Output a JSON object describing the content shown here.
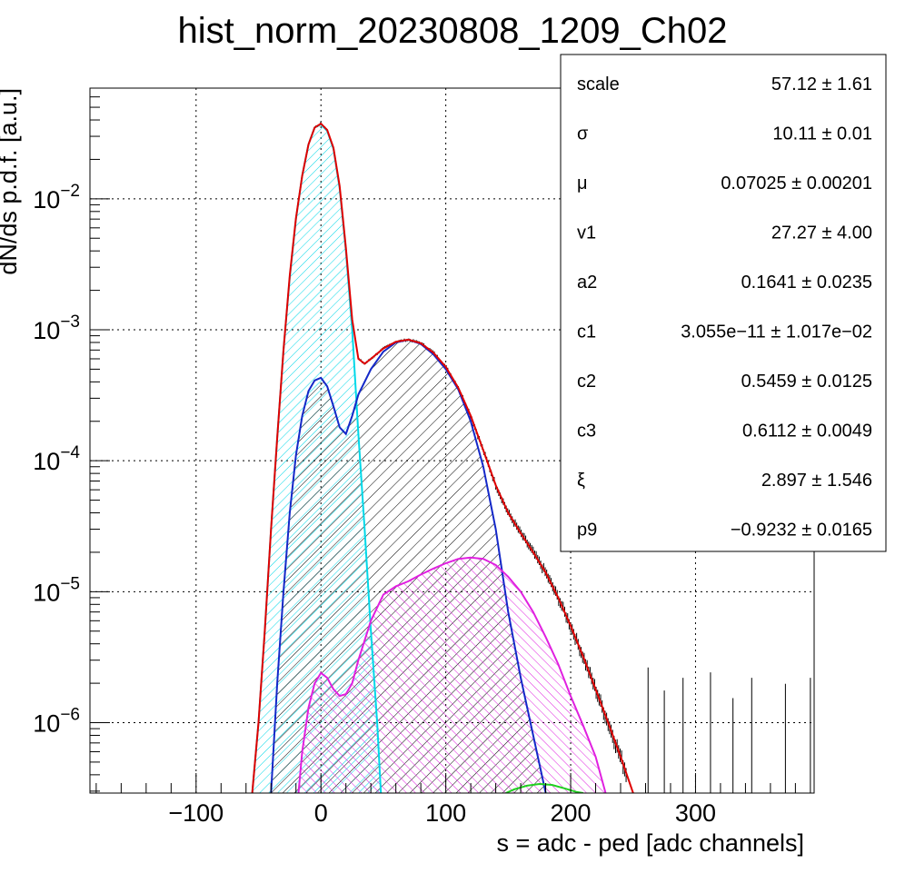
{
  "chart_data": {
    "type": "line",
    "title": "hist_norm_20230808_1209_Ch02",
    "xlabel": "s = adc - ped [adc channels]",
    "ylabel": "dN/ds p.d.f. [a.u.]",
    "x_range": [
      -185,
      395
    ],
    "y_range": [
      2.9e-07,
      0.07
    ],
    "y_scale": "log",
    "grid": true,
    "x_ticks": [
      {
        "value": -100,
        "label": "−100"
      },
      {
        "value": 0,
        "label": "0"
      },
      {
        "value": 100,
        "label": "100"
      },
      {
        "value": 200,
        "label": "200"
      },
      {
        "value": 300,
        "label": "300"
      }
    ],
    "y_ticks": [
      {
        "value": 0.01,
        "base": "10",
        "exp": "−2"
      },
      {
        "value": 0.001,
        "base": "10",
        "exp": "−3"
      },
      {
        "value": 0.0001,
        "base": "10",
        "exp": "−4"
      },
      {
        "value": 1e-05,
        "base": "10",
        "exp": "−5"
      },
      {
        "value": 1e-06,
        "base": "10",
        "exp": "−6"
      }
    ],
    "stats_box": {
      "placement": "top-right",
      "rows": [
        {
          "name": "scale",
          "value": "57.12 ± 1.61"
        },
        {
          "name": "σ",
          "value": "10.11 ± 0.01"
        },
        {
          "name": "μ",
          "value": "0.07025 ± 0.00201"
        },
        {
          "name": "v1",
          "value": "27.27 ± 4.00"
        },
        {
          "name": "a2",
          "value": "0.1641 ± 0.0235"
        },
        {
          "name": "c1",
          "value": "3.055e−11 ± 1.017e−02"
        },
        {
          "name": "c2",
          "value": "0.5459 ± 0.0125"
        },
        {
          "name": "c3",
          "value": "0.6112 ± 0.0049"
        },
        {
          "name": "ξ",
          "value": "2.897 ± 1.546"
        },
        {
          "name": "p9",
          "value": "−0.9232 ± 0.0165"
        }
      ]
    },
    "series": [
      {
        "color": "#00d8e8",
        "hatch": "cyan",
        "points": [
          [
            -55,
            2.9e-07
          ],
          [
            -50,
            1e-06
          ],
          [
            -45,
            5e-06
          ],
          [
            -40,
            3e-05
          ],
          [
            -35,
            0.00015
          ],
          [
            -30,
            0.0007
          ],
          [
            -25,
            0.0025
          ],
          [
            -20,
            0.007
          ],
          [
            -15,
            0.015
          ],
          [
            -10,
            0.026
          ],
          [
            -5,
            0.035
          ],
          [
            0,
            0.037
          ],
          [
            5,
            0.033
          ],
          [
            10,
            0.024
          ],
          [
            15,
            0.012
          ],
          [
            20,
            0.004
          ],
          [
            25,
            0.001
          ],
          [
            30,
            0.00016
          ],
          [
            35,
            3e-05
          ],
          [
            40,
            5e-06
          ],
          [
            45,
            1e-06
          ],
          [
            48,
            2.9e-07
          ]
        ]
      },
      {
        "color": "#1428c8",
        "hatch": "black",
        "points": [
          [
            -40,
            2.9e-07
          ],
          [
            -35,
            2e-06
          ],
          [
            -30,
            1e-05
          ],
          [
            -25,
            4e-05
          ],
          [
            -20,
            0.00011
          ],
          [
            -15,
            0.00022
          ],
          [
            -10,
            0.00034
          ],
          [
            -5,
            0.00041
          ],
          [
            0,
            0.00043
          ],
          [
            5,
            0.00037
          ],
          [
            10,
            0.00026
          ],
          [
            15,
            0.00018
          ],
          [
            20,
            0.00016
          ],
          [
            25,
            0.00022
          ],
          [
            30,
            0.00032
          ],
          [
            40,
            0.0005
          ],
          [
            50,
            0.00068
          ],
          [
            60,
            0.0008
          ],
          [
            70,
            0.00084
          ],
          [
            80,
            0.00078
          ],
          [
            90,
            0.00065
          ],
          [
            100,
            0.0005
          ],
          [
            110,
            0.00035
          ],
          [
            120,
            0.0002
          ],
          [
            130,
            9e-05
          ],
          [
            140,
            3e-05
          ],
          [
            150,
            7e-06
          ],
          [
            160,
            2.2e-06
          ],
          [
            170,
            8e-07
          ],
          [
            180,
            2.9e-07
          ]
        ]
      },
      {
        "color": "#e020e0",
        "hatch": "magenta",
        "points": [
          [
            -18,
            2.9e-07
          ],
          [
            -15,
            6e-07
          ],
          [
            -10,
            1.3e-06
          ],
          [
            -5,
            2e-06
          ],
          [
            0,
            2.4e-06
          ],
          [
            5,
            2.2e-06
          ],
          [
            10,
            1.8e-06
          ],
          [
            15,
            1.6e-06
          ],
          [
            20,
            1.65e-06
          ],
          [
            25,
            2e-06
          ],
          [
            30,
            3e-06
          ],
          [
            40,
            6e-06
          ],
          [
            50,
            9.5e-06
          ],
          [
            60,
            1.1e-05
          ],
          [
            70,
            1.2e-05
          ],
          [
            80,
            1.35e-05
          ],
          [
            90,
            1.5e-05
          ],
          [
            100,
            1.65e-05
          ],
          [
            110,
            1.78e-05
          ],
          [
            120,
            1.82e-05
          ],
          [
            130,
            1.78e-05
          ],
          [
            140,
            1.6e-05
          ],
          [
            150,
            1.3e-05
          ],
          [
            160,
            1e-05
          ],
          [
            170,
            7e-06
          ],
          [
            180,
            4.5e-06
          ],
          [
            190,
            2.8e-06
          ],
          [
            200,
            1.6e-06
          ],
          [
            210,
            9.5e-07
          ],
          [
            220,
            5.5e-07
          ],
          [
            228,
            2.9e-07
          ]
        ]
      },
      {
        "color": "#20d020",
        "hatch": "none",
        "points": [
          [
            148,
            2.9e-07
          ],
          [
            155,
            3.1e-07
          ],
          [
            165,
            3.3e-07
          ],
          [
            175,
            3.4e-07
          ],
          [
            185,
            3.35e-07
          ],
          [
            195,
            3.15e-07
          ],
          [
            205,
            2.95e-07
          ],
          [
            210,
            2.9e-07
          ]
        ]
      },
      {
        "color": "#e00000",
        "hatch": "none",
        "points": [
          [
            -55,
            2.9e-07
          ],
          [
            -50,
            1e-06
          ],
          [
            -45,
            5e-06
          ],
          [
            -40,
            3e-05
          ],
          [
            -35,
            0.00015
          ],
          [
            -30,
            0.0007
          ],
          [
            -25,
            0.0026
          ],
          [
            -20,
            0.0071
          ],
          [
            -15,
            0.015
          ],
          [
            -10,
            0.026
          ],
          [
            -5,
            0.035
          ],
          [
            0,
            0.0375
          ],
          [
            5,
            0.0335
          ],
          [
            10,
            0.0245
          ],
          [
            15,
            0.0125
          ],
          [
            20,
            0.0042
          ],
          [
            25,
            0.0012
          ],
          [
            30,
            0.0006
          ],
          [
            35,
            0.00055
          ],
          [
            40,
            0.0006
          ],
          [
            50,
            0.00072
          ],
          [
            60,
            0.00081
          ],
          [
            70,
            0.00084
          ],
          [
            80,
            0.00079
          ],
          [
            90,
            0.00067
          ],
          [
            100,
            0.00052
          ],
          [
            110,
            0.00036
          ],
          [
            120,
            0.00022
          ],
          [
            130,
            0.00012
          ],
          [
            140,
            6.5e-05
          ],
          [
            150,
            4e-05
          ],
          [
            160,
            2.8e-05
          ],
          [
            170,
            2e-05
          ],
          [
            180,
            1.4e-05
          ],
          [
            190,
            9e-06
          ],
          [
            200,
            5.5e-06
          ],
          [
            210,
            3.2e-06
          ],
          [
            220,
            1.8e-06
          ],
          [
            230,
            1e-06
          ],
          [
            240,
            5.5e-07
          ],
          [
            250,
            2.9e-07
          ]
        ]
      }
    ]
  }
}
